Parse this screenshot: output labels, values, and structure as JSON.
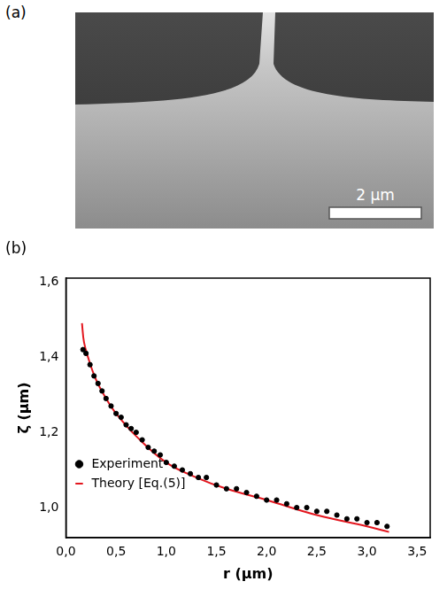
{
  "panel_a": {
    "label": "(a)",
    "scale_bar": "2 µm"
  },
  "chart_data": {
    "type": "scatter",
    "panel_label": "(b)",
    "x_label": "r (µm)",
    "y_label": "ζ (µm)",
    "xlim": [
      0,
      3.63
    ],
    "ylim": [
      0.92,
      1.61
    ],
    "xticks": [
      {
        "value": 0,
        "label": "0,0"
      },
      {
        "value": 0.5,
        "label": "0,5"
      },
      {
        "value": 1,
        "label": "1,0"
      },
      {
        "value": 1.5,
        "label": "1,5"
      },
      {
        "value": 2,
        "label": "2,0"
      },
      {
        "value": 2.5,
        "label": "2,5"
      },
      {
        "value": 3,
        "label": "3,0"
      },
      {
        "value": 3.5,
        "label": "3,5"
      }
    ],
    "yticks": [
      {
        "value": 1,
        "label": "1,0"
      },
      {
        "value": 1.2,
        "label": "1,2"
      },
      {
        "value": 1.4,
        "label": "1,4"
      },
      {
        "value": 1.6,
        "label": "1,6"
      }
    ],
    "grid": false,
    "legend": "upper right",
    "series": [
      {
        "name": "Experiment",
        "type": "scatter",
        "color": "#000000",
        "marker": "circle",
        "x": [
          0.17,
          0.2,
          0.24,
          0.28,
          0.32,
          0.36,
          0.4,
          0.45,
          0.5,
          0.55,
          0.6,
          0.65,
          0.7,
          0.76,
          0.82,
          0.88,
          0.94,
          1.0,
          1.08,
          1.16,
          1.24,
          1.32,
          1.4,
          1.5,
          1.6,
          1.7,
          1.8,
          1.9,
          2.0,
          2.1,
          2.2,
          2.3,
          2.4,
          2.5,
          2.6,
          2.7,
          2.8,
          2.9,
          3.0,
          3.1,
          3.2
        ],
        "values": [
          1.42,
          1.41,
          1.38,
          1.35,
          1.33,
          1.31,
          1.29,
          1.27,
          1.25,
          1.24,
          1.22,
          1.21,
          1.2,
          1.18,
          1.16,
          1.15,
          1.14,
          1.12,
          1.11,
          1.1,
          1.09,
          1.08,
          1.08,
          1.06,
          1.05,
          1.05,
          1.04,
          1.03,
          1.02,
          1.02,
          1.01,
          1.0,
          1.0,
          0.99,
          0.99,
          0.98,
          0.97,
          0.97,
          0.96,
          0.96,
          0.95
        ]
      },
      {
        "name": "Theory [Eq.(5)]",
        "type": "line",
        "color": "#e3161e",
        "line_style": "solid",
        "x": [
          0.16,
          0.18,
          0.22,
          0.3,
          0.4,
          0.5,
          0.7,
          1.0,
          1.3,
          1.6,
          2.0,
          2.5,
          3.0,
          3.22
        ],
        "values": [
          1.49,
          1.44,
          1.4,
          1.34,
          1.29,
          1.25,
          1.19,
          1.12,
          1.08,
          1.05,
          1.02,
          0.98,
          0.95,
          0.935
        ]
      }
    ]
  }
}
